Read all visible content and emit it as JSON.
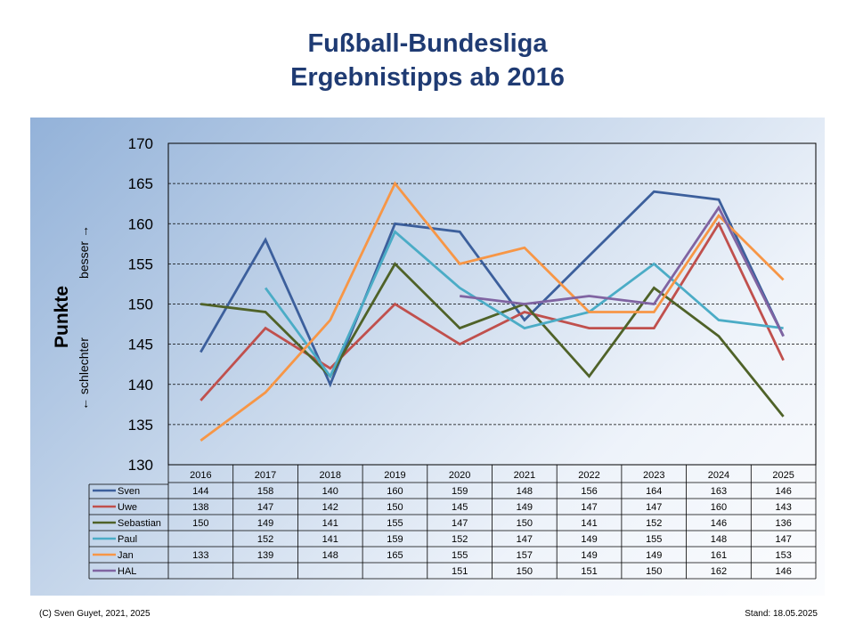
{
  "title_line1": "Fußball-Bundesliga",
  "title_line2": "Ergebnistipps ab 2016",
  "footer_left": "(C) Sven Guyet, 2021, 2025",
  "footer_right": "Stand: 18.05.2025",
  "chart_data": {
    "type": "line",
    "categories": [
      "2016",
      "2017",
      "2018",
      "2019",
      "2020",
      "2021",
      "2022",
      "2023",
      "2024",
      "2025"
    ],
    "ylim": [
      130,
      170
    ],
    "yticks": [
      130,
      135,
      140,
      145,
      150,
      155,
      160,
      165,
      170
    ],
    "ylabel": "Punkte",
    "ylabel_down": "← schlechter",
    "ylabel_up": "besser →",
    "grid": true,
    "legend": "data-table-below",
    "series": [
      {
        "name": "Sven",
        "color": "#3c5f9c",
        "values": [
          144,
          158,
          140,
          160,
          159,
          148,
          156,
          164,
          163,
          146
        ]
      },
      {
        "name": "Uwe",
        "color": "#c0504d",
        "values": [
          138,
          147,
          142,
          150,
          145,
          149,
          147,
          147,
          160,
          143
        ]
      },
      {
        "name": "Sebastian",
        "color": "#4f6228",
        "values": [
          150,
          149,
          141,
          155,
          147,
          150,
          141,
          152,
          146,
          136
        ]
      },
      {
        "name": "Paul",
        "color": "#4bacc6",
        "values": [
          null,
          152,
          141,
          159,
          152,
          147,
          149,
          155,
          148,
          147
        ]
      },
      {
        "name": "Jan",
        "color": "#f79646",
        "values": [
          133,
          139,
          148,
          165,
          155,
          157,
          149,
          149,
          161,
          153
        ]
      },
      {
        "name": "HAL",
        "color": "#8064a2",
        "values": [
          null,
          null,
          null,
          null,
          151,
          150,
          151,
          150,
          162,
          146
        ]
      }
    ]
  }
}
